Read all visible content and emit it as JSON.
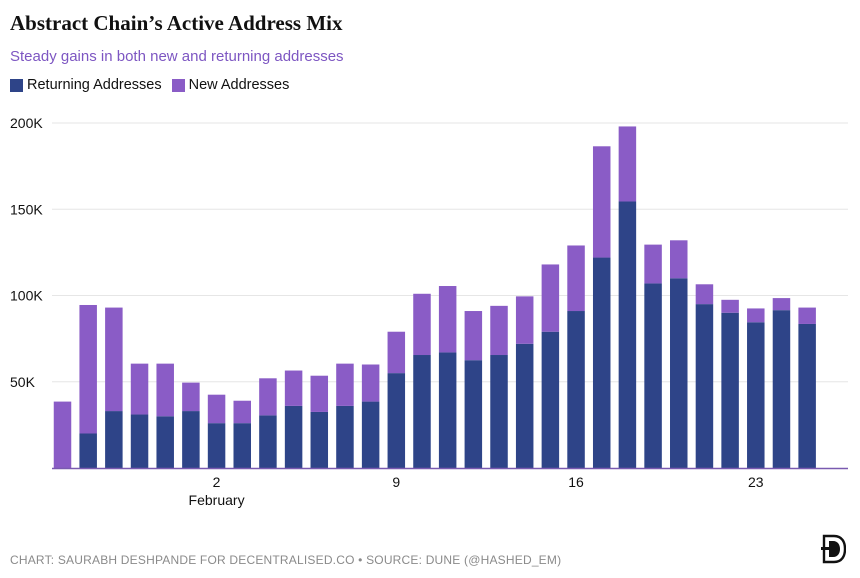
{
  "title": "Abstract Chain’s Active Address Mix",
  "subtitle": "Steady gains in both new and returning addresses",
  "footer": "CHART: SAURABH DESHPANDE FOR DECENTRALISED.CO • SOURCE: DUNE (@HASHED_EM)",
  "logo_icon": "decentralised-logo-icon",
  "colors": {
    "returning": "#2e4488",
    "new": "#8a5cc6",
    "subtitle": "#7d56c2",
    "grid": "#e6e6e6",
    "axis": "#7a5ab0"
  },
  "chart_data": {
    "type": "bar",
    "stacked": true,
    "x_tick_labels": [
      "2",
      "9",
      "16",
      "23"
    ],
    "x_tick_sublabel": "February",
    "y_tick_labels": [
      "50K",
      "100K",
      "150K",
      "200K"
    ],
    "ylim": [
      0,
      200000
    ],
    "grid": true,
    "legend_position": "top-left",
    "dates": [
      "2025-01-27",
      "2025-01-28",
      "2025-01-29",
      "2025-01-30",
      "2025-01-31",
      "2025-02-01",
      "2025-02-02",
      "2025-02-03",
      "2025-02-04",
      "2025-02-05",
      "2025-02-06",
      "2025-02-07",
      "2025-02-08",
      "2025-02-09",
      "2025-02-10",
      "2025-02-11",
      "2025-02-12",
      "2025-02-13",
      "2025-02-14",
      "2025-02-15",
      "2025-02-16",
      "2025-02-17",
      "2025-02-18",
      "2025-02-19",
      "2025-02-20",
      "2025-02-21",
      "2025-02-22",
      "2025-02-23",
      "2025-02-24",
      "2025-02-25",
      "2025-02-26"
    ],
    "series": [
      {
        "name": "Returning Addresses",
        "values": [
          0,
          20000,
          33000,
          31000,
          30000,
          33000,
          26000,
          26000,
          30500,
          36000,
          32500,
          36000,
          38500,
          55000,
          65500,
          67000,
          62500,
          65500,
          72000,
          79000,
          91000,
          122000,
          154500,
          107000,
          110000,
          95000,
          90000,
          84500,
          91500,
          83500,
          0
        ]
      },
      {
        "name": "New Addresses",
        "values": [
          38500,
          74500,
          60000,
          29500,
          30500,
          16500,
          16500,
          13000,
          21500,
          20500,
          21000,
          24500,
          21500,
          24000,
          35500,
          38500,
          28500,
          28500,
          27500,
          39000,
          38000,
          64500,
          43500,
          22500,
          22000,
          11500,
          7500,
          8000,
          7000,
          9500,
          0
        ]
      }
    ]
  }
}
